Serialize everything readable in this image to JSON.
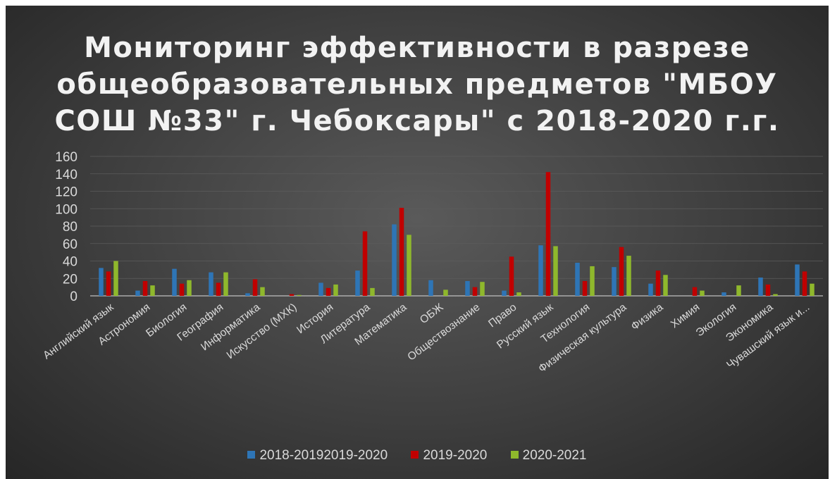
{
  "chart_data": {
    "type": "bar",
    "title_lines": [
      "Мониторинг эффективности в разрезе",
      "общеобразовательных предметов \"МБОУ",
      "СОШ №33\" г. Чебоксары\" с 2018-2020 г.г."
    ],
    "categories": [
      "Английский язык",
      "Астрономия",
      "Биология",
      "География",
      "Информатика",
      "Искусство (МХК)",
      "История",
      "Литература",
      "Математика",
      "ОБЖ",
      "Обществознание",
      "Право",
      "Русский язык",
      "Технология",
      "Физическая культура",
      "Физика",
      "Химия",
      "Экология",
      "Экономика",
      "Чувашский язык и..."
    ],
    "series": [
      {
        "name": "2018-20192019-2020",
        "color": "#2e75b6",
        "values": [
          32,
          6,
          31,
          27,
          3,
          0,
          15,
          29,
          82,
          18,
          17,
          6,
          58,
          38,
          33,
          14,
          0,
          4,
          21,
          36
        ]
      },
      {
        "name": "2019-2020",
        "color": "#c00000",
        "values": [
          28,
          17,
          14,
          15,
          19,
          2,
          9,
          74,
          101,
          0,
          10,
          45,
          142,
          17,
          56,
          29,
          10,
          0,
          13,
          28
        ]
      },
      {
        "name": "2020-2021",
        "color": "#8fb82c",
        "values": [
          40,
          12,
          18,
          27,
          10,
          1,
          13,
          9,
          70,
          7,
          16,
          4,
          57,
          34,
          46,
          24,
          6,
          12,
          2,
          14
        ]
      }
    ],
    "ylim": [
      0,
      160
    ],
    "yticks": [
      0,
      20,
      40,
      60,
      80,
      100,
      120,
      140,
      160
    ],
    "grid": true,
    "legend_position": "bottom"
  }
}
